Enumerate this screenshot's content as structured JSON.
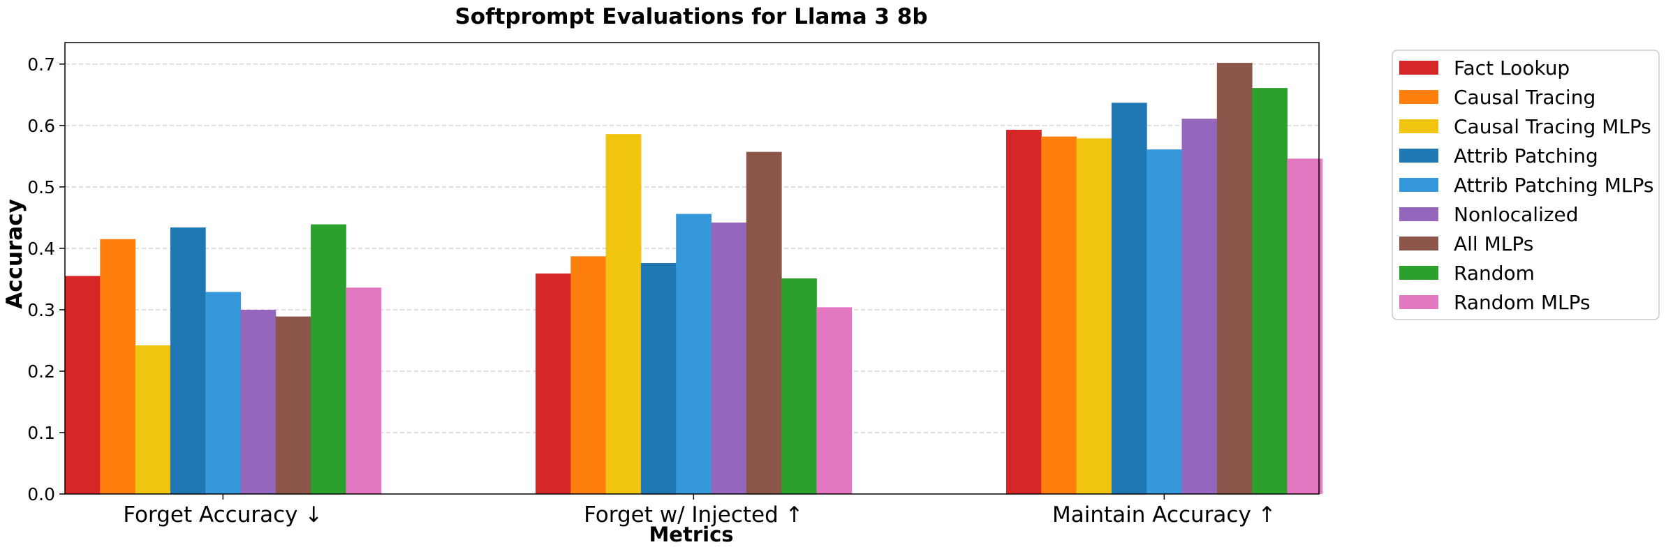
{
  "chart_data": {
    "type": "bar",
    "title": "Softprompt Evaluations for Llama 3 8b",
    "xlabel": "Metrics",
    "ylabel": "Accuracy",
    "ylim": [
      0,
      0.735
    ],
    "yticks": [
      "0.0",
      "0.1",
      "0.2",
      "0.3",
      "0.4",
      "0.5",
      "0.6",
      "0.7"
    ],
    "grid": "horizontal dashed",
    "legend_position": "outside-right",
    "categories": [
      "Forget Accuracy ↓",
      "Forget w/ Injected ↑",
      "Maintain Accuracy ↑"
    ],
    "series": [
      {
        "name": "Fact Lookup",
        "color": "#d62728",
        "values": [
          0.355,
          0.359,
          0.593
        ]
      },
      {
        "name": "Causal Tracing",
        "color": "#ff7f0e",
        "values": [
          0.415,
          0.387,
          0.582
        ]
      },
      {
        "name": "Causal Tracing MLPs",
        "color": "#f1c40f",
        "values": [
          0.242,
          0.586,
          0.579
        ]
      },
      {
        "name": "Attrib Patching",
        "color": "#1f77b4",
        "values": [
          0.434,
          0.376,
          0.637
        ]
      },
      {
        "name": "Attrib Patching MLPs",
        "color": "#3498db",
        "values": [
          0.329,
          0.456,
          0.561
        ]
      },
      {
        "name": "Nonlocalized",
        "color": "#9467bd",
        "values": [
          0.3,
          0.442,
          0.611
        ]
      },
      {
        "name": "All MLPs",
        "color": "#8c564b",
        "values": [
          0.289,
          0.557,
          0.702
        ]
      },
      {
        "name": "Random",
        "color": "#2ca02c",
        "values": [
          0.439,
          0.351,
          0.661
        ]
      },
      {
        "name": "Random MLPs",
        "color": "#e377c2",
        "values": [
          0.336,
          0.304,
          0.546
        ]
      }
    ]
  }
}
